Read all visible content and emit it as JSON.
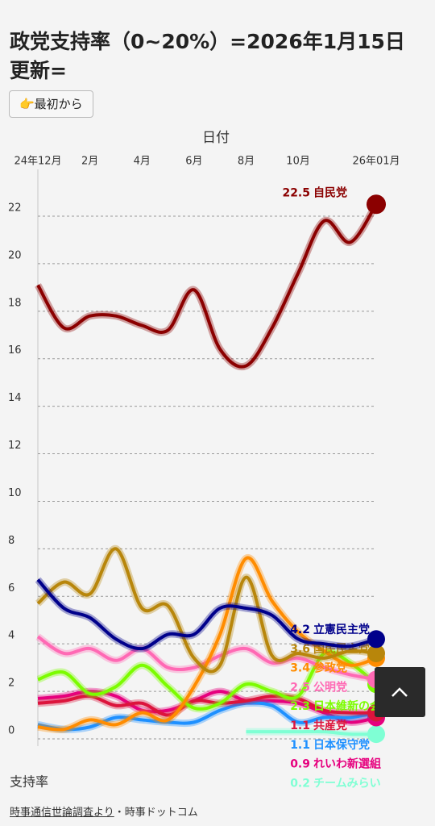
{
  "chart_data": {
    "type": "line",
    "title": "政党支持率（0~20%）=2026年1月15日更新=",
    "xlabel": "日付",
    "ylabel": "支持率",
    "categories": [
      "24年12月",
      null,
      "2月",
      null,
      "4月",
      null,
      "6月",
      null,
      "8月",
      null,
      "10月",
      null,
      null,
      "26年01月"
    ],
    "ylim": [
      0,
      22
    ],
    "yticks": [
      0,
      2,
      4,
      6,
      8,
      10,
      12,
      14,
      16,
      18,
      20,
      22
    ],
    "grid": true,
    "series": [
      {
        "name": "自民党",
        "color": "#8b0000",
        "values": [
          19.1,
          17.3,
          17.8,
          17.8,
          17.4,
          17.2,
          18.9,
          16.4,
          15.7,
          17.3,
          19.6,
          21.8,
          20.9,
          22.5
        ]
      },
      {
        "name": "立憲民主党",
        "color": "#00008b",
        "values": [
          6.7,
          5.5,
          5.1,
          4.2,
          3.8,
          4.4,
          4.4,
          5.5,
          5.5,
          5.2,
          4.2,
          4.0,
          3.9,
          4.2
        ]
      },
      {
        "name": "国民民主党",
        "color": "#b8860b",
        "values": [
          5.7,
          6.6,
          6.1,
          8.0,
          5.5,
          5.6,
          3.4,
          3.1,
          6.8,
          3.5,
          3.6,
          3.4,
          3.7,
          3.6
        ]
      },
      {
        "name": "参政党",
        "color": "#ff8c00",
        "values": [
          0.5,
          0.4,
          0.8,
          0.6,
          1.1,
          0.8,
          2.2,
          4.4,
          7.6,
          5.8,
          4.5,
          3.7,
          3.1,
          3.4
        ]
      },
      {
        "name": "公明党",
        "color": "#ff69b4",
        "values": [
          4.3,
          3.6,
          3.8,
          3.3,
          3.8,
          3.0,
          3.0,
          3.5,
          3.8,
          3.2,
          3.4,
          3.0,
          2.7,
          2.5
        ]
      },
      {
        "name": "日本維新の会",
        "color": "#7cfc00",
        "values": [
          2.5,
          2.8,
          1.9,
          2.2,
          3.1,
          2.2,
          1.3,
          1.5,
          2.3,
          2.0,
          1.8,
          3.6,
          3.2,
          2.3
        ]
      },
      {
        "name": "共産党",
        "color": "#dc143c",
        "values": [
          1.5,
          1.6,
          1.8,
          1.4,
          1.5,
          1.0,
          1.6,
          1.5,
          1.6,
          1.8,
          1.7,
          1.2,
          1.1,
          1.1
        ]
      },
      {
        "name": "日本保守党",
        "color": "#1e90ff",
        "values": [
          0.6,
          0.4,
          0.5,
          0.9,
          0.8,
          0.7,
          0.7,
          1.2,
          1.5,
          1.4,
          0.7,
          0.9,
          0.9,
          1.1
        ]
      },
      {
        "name": "れいわ新選組",
        "color": "#e6007e",
        "values": [
          1.7,
          1.8,
          2.0,
          1.8,
          1.2,
          1.2,
          1.6,
          2.0,
          1.6,
          1.6,
          1.5,
          1.1,
          0.7,
          0.9
        ]
      },
      {
        "name": "チームみらい",
        "color": "#7fffd4",
        "values": [
          null,
          null,
          null,
          null,
          null,
          null,
          null,
          null,
          0.3,
          0.3,
          0.3,
          0.3,
          0.2,
          0.2
        ]
      }
    ]
  },
  "ui": {
    "button": "👉最初から"
  },
  "footer": {
    "source": "時事通信世論調査より",
    "site": "・時事ドットコム"
  }
}
